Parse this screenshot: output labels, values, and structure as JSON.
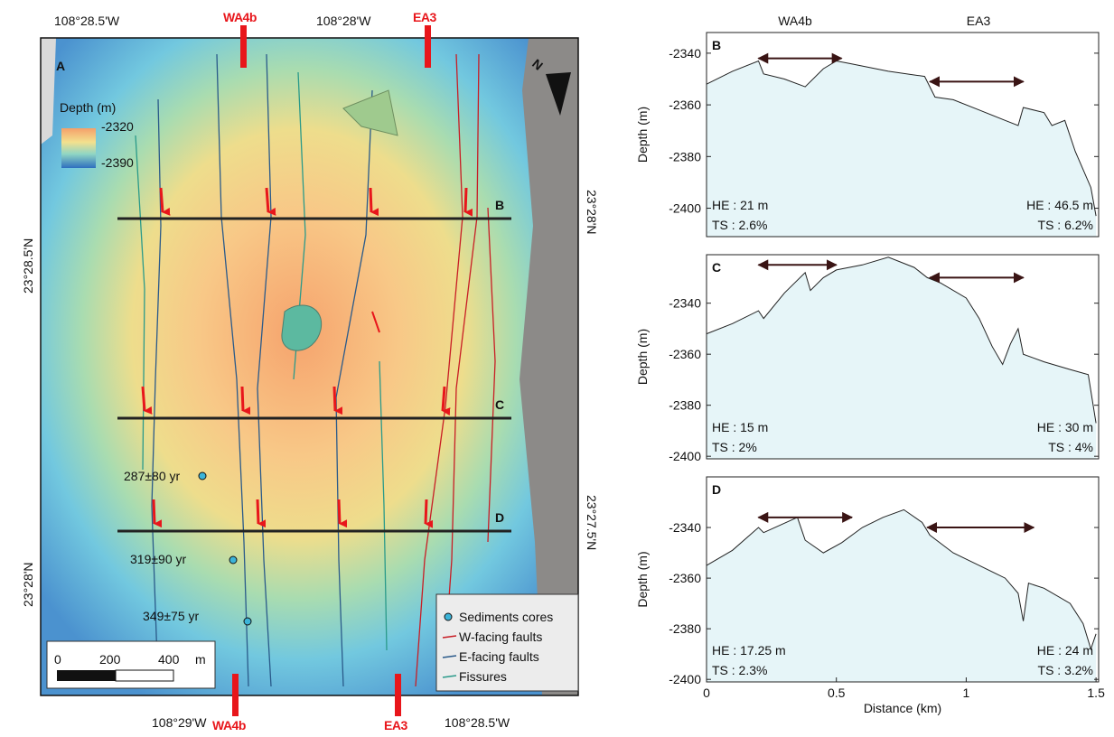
{
  "map": {
    "panel": "A",
    "top_lon": [
      "108°28.5'W",
      "108°28'W"
    ],
    "bottom_lon": [
      "108°29'W",
      "108°28.5'W"
    ],
    "left_lat": [
      "23°28.5'N",
      "23°28'N"
    ],
    "right_lat": [
      "23°28'N",
      "23°27.5'N"
    ],
    "profile_tops": [
      "WA4b",
      "EA3"
    ],
    "profile_bottoms": [
      "WA4b",
      "EA3"
    ],
    "section_labels": [
      "B",
      "C",
      "D"
    ],
    "north": "N",
    "depth_title": "Depth (m)",
    "depth_max": "-2320",
    "depth_min": "-2390",
    "scale": [
      "0",
      "200",
      "400",
      "m"
    ],
    "cores": [
      "287±80 yr",
      "319±90 yr",
      "349±75 yr"
    ],
    "legend": [
      "Sediments cores",
      "W-facing faults",
      "E-facing faults",
      "Fissures"
    ]
  },
  "chart_data": [
    {
      "type": "line",
      "panel": "B",
      "top_labels": [
        "WA4b",
        "EA3"
      ],
      "ylabel": "Depth (m)",
      "xlim": [
        0,
        1.51
      ],
      "ylim": [
        -2411,
        -2332
      ],
      "yticks": [
        -2340,
        -2360,
        -2380,
        -2400
      ],
      "x": [
        0,
        0.1,
        0.2,
        0.22,
        0.3,
        0.38,
        0.45,
        0.5,
        0.55,
        0.7,
        0.84,
        0.88,
        0.95,
        1.05,
        1.15,
        1.2,
        1.22,
        1.3,
        1.33,
        1.38,
        1.42,
        1.48,
        1.5
      ],
      "values": [
        -2352,
        -2347,
        -2343,
        -2348,
        -2350,
        -2353,
        -2346,
        -2343,
        -2344,
        -2347,
        -2349,
        -2357,
        -2358,
        -2362,
        -2366,
        -2368,
        -2361,
        -2363,
        -2368,
        -2366,
        -2378,
        -2392,
        -2403
      ],
      "arrows": [
        {
          "x": [
            0.2,
            0.52
          ],
          "y": -2342
        },
        {
          "x": [
            0.86,
            1.22
          ],
          "y": -2351
        }
      ],
      "notes": [
        "HE : 21 m",
        "TS : 2.6%",
        "HE : 46.5 m",
        "TS : 6.2%"
      ]
    },
    {
      "type": "line",
      "panel": "C",
      "ylabel": "Depth (m)",
      "xlim": [
        0,
        1.51
      ],
      "ylim": [
        -2401,
        -2321
      ],
      "yticks": [
        -2340,
        -2360,
        -2380,
        -2400
      ],
      "x": [
        0,
        0.1,
        0.2,
        0.22,
        0.3,
        0.38,
        0.4,
        0.45,
        0.5,
        0.6,
        0.7,
        0.8,
        0.85,
        0.9,
        1.0,
        1.05,
        1.1,
        1.14,
        1.17,
        1.2,
        1.22,
        1.3,
        1.4,
        1.47,
        1.5
      ],
      "values": [
        -2352,
        -2348,
        -2343,
        -2346,
        -2336,
        -2328,
        -2335,
        -2330,
        -2327,
        -2325,
        -2322,
        -2326,
        -2330,
        -2332,
        -2338,
        -2346,
        -2357,
        -2364,
        -2356,
        -2350,
        -2360,
        -2363,
        -2366,
        -2368,
        -2387
      ],
      "arrows": [
        {
          "x": [
            0.2,
            0.5
          ],
          "y": -2325
        },
        {
          "x": [
            0.86,
            1.22
          ],
          "y": -2330
        }
      ],
      "notes": [
        "HE : 15 m",
        "TS : 2%",
        "HE : 30 m",
        "TS : 4%"
      ]
    },
    {
      "type": "line",
      "panel": "D",
      "ylabel": "Depth (m)",
      "xlabel": "Distance (km)",
      "xlim": [
        0,
        1.51
      ],
      "xticks": [
        0,
        0.5,
        1,
        1.5
      ],
      "ylim": [
        -2401,
        -2320
      ],
      "yticks": [
        -2340,
        -2360,
        -2380,
        -2400
      ],
      "x": [
        0,
        0.1,
        0.2,
        0.22,
        0.35,
        0.38,
        0.45,
        0.52,
        0.6,
        0.68,
        0.76,
        0.83,
        0.86,
        0.95,
        1.05,
        1.15,
        1.2,
        1.22,
        1.24,
        1.3,
        1.4,
        1.45,
        1.48,
        1.5
      ],
      "values": [
        -2355,
        -2349,
        -2340,
        -2342,
        -2336,
        -2345,
        -2350,
        -2346,
        -2340,
        -2336,
        -2333,
        -2338,
        -2343,
        -2350,
        -2355,
        -2360,
        -2366,
        -2377,
        -2362,
        -2364,
        -2370,
        -2378,
        -2388,
        -2382
      ],
      "arrows": [
        {
          "x": [
            0.2,
            0.56
          ],
          "y": -2336
        },
        {
          "x": [
            0.85,
            1.26
          ],
          "y": -2340
        }
      ],
      "notes": [
        "HE : 17.25 m",
        "TS : 2.3%",
        "HE : 24 m",
        "TS : 3.2%"
      ]
    }
  ]
}
